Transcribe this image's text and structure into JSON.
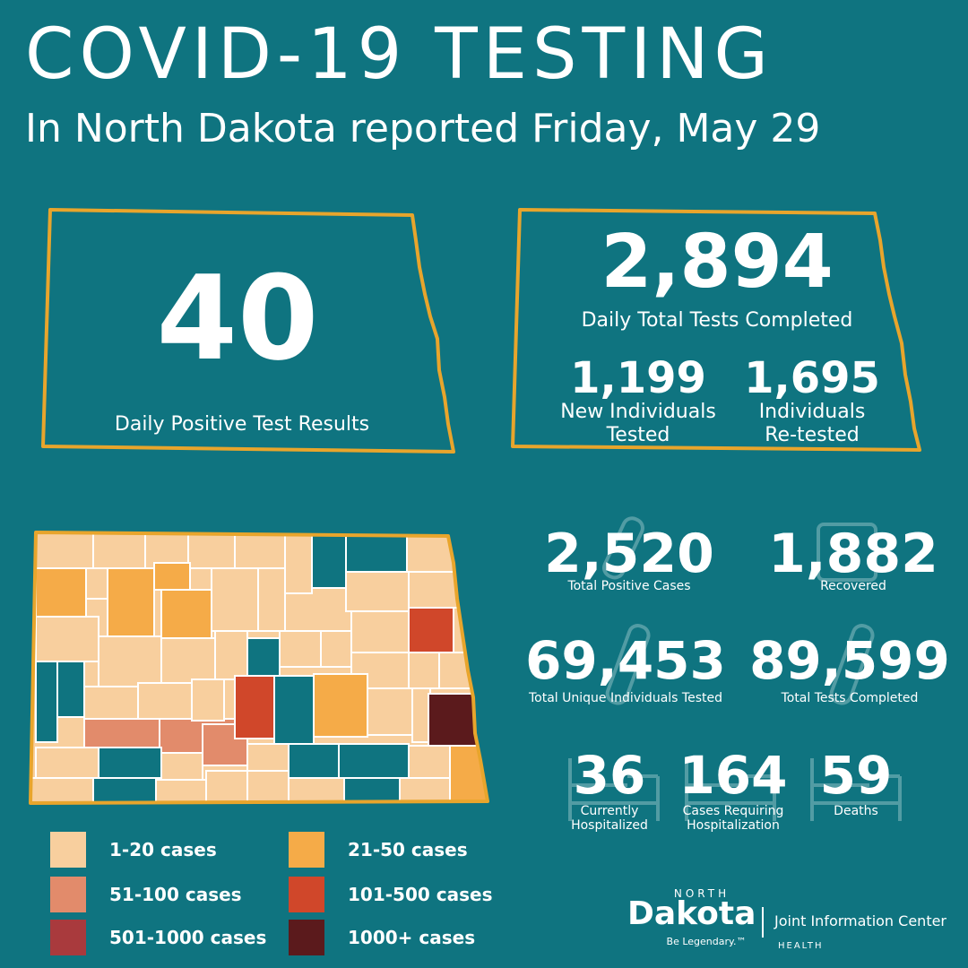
{
  "header": {
    "title": "COVID-19 TESTING",
    "subtitle": "In North Dakota reported Friday, May 29"
  },
  "positive_panel": {
    "value": "40",
    "label": "Daily Positive Test Results"
  },
  "tests_panel": {
    "total_value": "2,894",
    "total_label": "Daily Total Tests Completed",
    "new_value": "1,199",
    "new_label_1": "New Individuals",
    "new_label_2": "Tested",
    "retest_value": "1,695",
    "retest_label_1": "Individuals",
    "retest_label_2": "Re-tested"
  },
  "stats": {
    "total_positive": {
      "value": "2,520",
      "label": "Total Positive Cases"
    },
    "recovered": {
      "value": "1,882",
      "label": "Recovered"
    },
    "unique_tested": {
      "value": "69,453",
      "label": "Total Unique Individuals Tested"
    },
    "total_tests": {
      "value": "89,599",
      "label": "Total Tests Completed"
    },
    "hospitalized": {
      "value": "36",
      "label_1": "Currently",
      "label_2": "Hospitalized"
    },
    "required_hosp": {
      "value": "164",
      "label_1": "Cases Requiring",
      "label_2": "Hospitalization"
    },
    "deaths": {
      "value": "59",
      "label": "Deaths"
    }
  },
  "legend": [
    {
      "label": "1-20 cases",
      "color": "#f8cf9e"
    },
    {
      "label": "21-50 cases",
      "color": "#f5ab48"
    },
    {
      "label": "51-100 cases",
      "color": "#e28b6b"
    },
    {
      "label": "101-500 cases",
      "color": "#d0472a"
    },
    {
      "label": "501-1000 cases",
      "color": "#a93a3d"
    },
    {
      "label": "1000+ cases",
      "color": "#5b1a1c"
    }
  ],
  "logo": {
    "north": "NORTH",
    "dakota": "Dakota",
    "tagline": "Be Legendary.™",
    "center": "Joint Information Center",
    "health": "HEALTH"
  },
  "colors": {
    "background": "#0f7480",
    "outline": "#e8a52c",
    "teal_county": "#0f7480"
  }
}
